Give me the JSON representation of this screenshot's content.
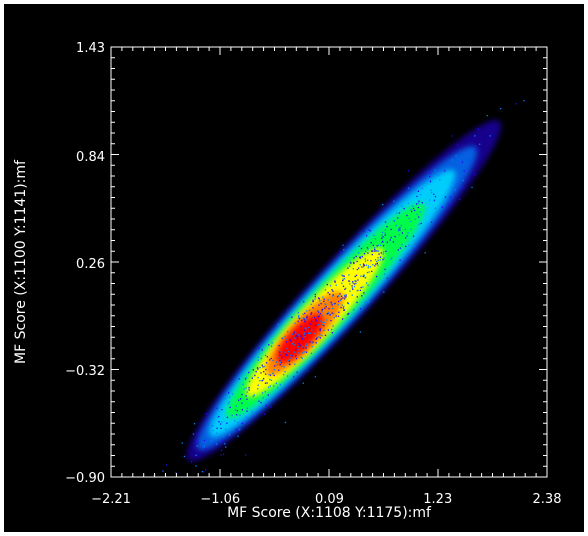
{
  "chart_data": {
    "type": "scatter",
    "style": "density",
    "background": "#000000",
    "foreground": "#ffffff",
    "xlabel": "MF Score (X:1108 Y:1175):mf",
    "ylabel": "MF Score (X:1100 Y:1141):mf",
    "xlim": [
      -2.21,
      2.38
    ],
    "ylim": [
      -0.9,
      1.43
    ],
    "x_ticks": [
      -2.21,
      -1.06,
      0.09,
      1.23,
      2.38
    ],
    "x_tick_labels": [
      "−2.21",
      "−1.06",
      "0.09",
      "1.23",
      "2.38"
    ],
    "y_ticks": [
      -0.9,
      -0.32,
      0.26,
      0.84,
      1.43
    ],
    "y_tick_labels": [
      "−0.90",
      "−0.32",
      "0.26",
      "0.84",
      "1.43"
    ],
    "grid": false,
    "density_peak": {
      "x": -0.15,
      "y": -0.11
    },
    "density_colormap": [
      "#2b00ff",
      "#0080ff",
      "#00e0ff",
      "#00ff40",
      "#ffff00",
      "#ff8000",
      "#ff0000"
    ],
    "trend": {
      "slope": 0.56,
      "intercept": -0.04,
      "x_range": [
        -1.55,
        2.0
      ]
    }
  }
}
